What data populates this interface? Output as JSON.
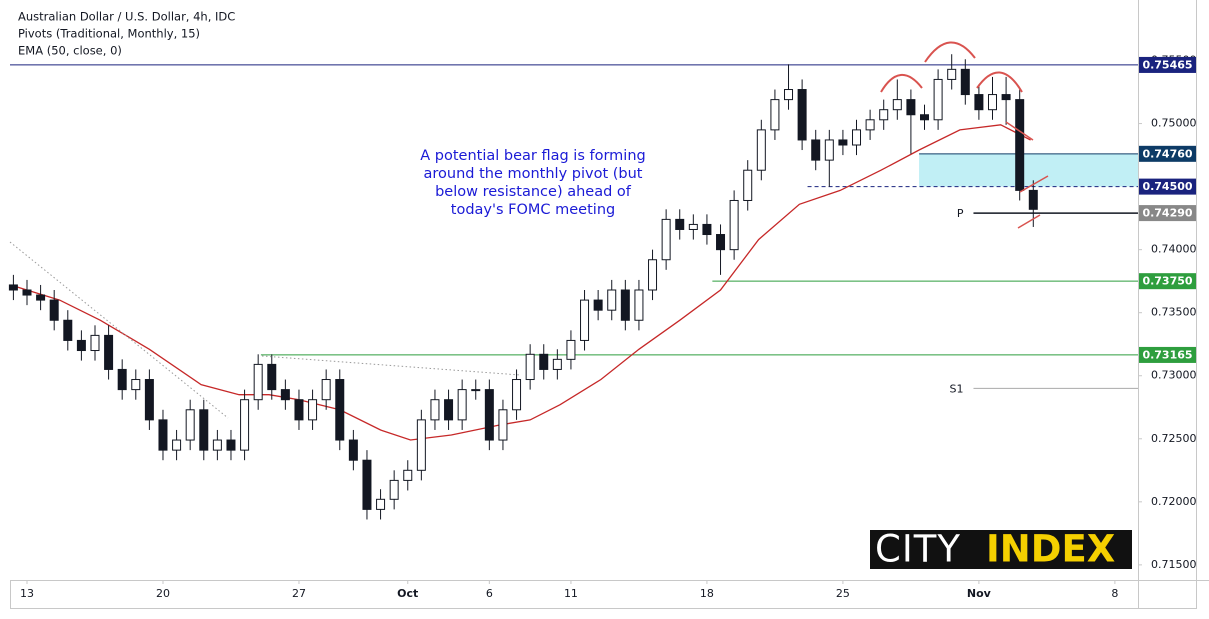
{
  "chart_data": {
    "type": "candlestick",
    "title": "Australian Dollar / U.S. Dollar, 4h, IDC",
    "pivots_name": "Pivots (Traditional, Monthly, 15)",
    "annotation": [
      "A potential bear flag is forming",
      "around the monthly pivot (but",
      "below resistance) ahead of",
      "today's FOMC meeting"
    ],
    "logo": [
      "CITY",
      "INDEX"
    ],
    "xlim": [
      -0.625,
      40.85
    ],
    "ylim": [
      0.7138,
      0.7598
    ],
    "xticks": [
      {
        "value": 0,
        "label": "13"
      },
      {
        "value": 5,
        "label": "20"
      },
      {
        "value": 10,
        "label": "27"
      },
      {
        "value": 14,
        "label": "Oct"
      },
      {
        "value": 17,
        "label": "6"
      },
      {
        "value": 20,
        "label": "11"
      },
      {
        "value": 25,
        "label": "18"
      },
      {
        "value": 30,
        "label": "25"
      },
      {
        "value": 35,
        "label": "Nov"
      },
      {
        "value": 40,
        "label": "8"
      }
    ],
    "yticks": [
      {
        "value": 0.715,
        "label": "0.71500"
      },
      {
        "value": 0.72,
        "label": "0.72000"
      },
      {
        "value": 0.725,
        "label": "0.72500"
      },
      {
        "value": 0.73,
        "label": "0.73000"
      },
      {
        "value": 0.735,
        "label": "0.73500"
      },
      {
        "value": 0.74,
        "label": "0.74000"
      },
      {
        "value": 0.745,
        "label": "0.74500"
      },
      {
        "value": 0.75,
        "label": "0.75000"
      },
      {
        "value": 0.755,
        "label": "0.75500"
      }
    ],
    "x": [
      -0.5,
      0,
      0.5,
      1,
      1.5,
      2,
      2.5,
      3,
      3.5,
      4,
      4.5,
      5,
      5.5,
      6,
      6.5,
      7,
      7.5,
      8,
      8.5,
      9,
      9.5,
      10,
      10.5,
      11,
      11.5,
      12,
      12.5,
      13,
      13.5,
      14,
      14.5,
      15,
      15.5,
      16,
      16.5,
      17,
      17.5,
      18,
      18.5,
      19,
      19.5,
      20,
      20.5,
      21,
      21.5,
      22,
      22.5,
      23,
      23.5,
      24,
      24.5,
      25,
      25.5,
      26,
      26.5,
      27,
      27.5,
      28,
      28.5,
      29,
      29.5,
      30,
      30.5,
      31,
      31.5,
      32,
      32.5,
      33,
      33.5,
      34,
      34.5,
      35,
      35.5,
      36,
      36.5,
      37
    ],
    "open": [
      0.7372,
      0.7368,
      0.7364,
      0.736,
      0.7344,
      0.7328,
      0.732,
      0.7332,
      0.7305,
      0.7289,
      0.7297,
      0.7265,
      0.7241,
      0.7249,
      0.7273,
      0.7241,
      0.7249,
      0.7241,
      0.7281,
      0.7309,
      0.7289,
      0.7281,
      0.7265,
      0.7281,
      0.7297,
      0.7249,
      0.7233,
      0.7194,
      0.7202,
      0.7217,
      0.7225,
      0.7265,
      0.7281,
      0.7265,
      0.7289,
      0.7289,
      0.7249,
      0.7273,
      0.7297,
      0.7317,
      0.7305,
      0.7313,
      0.7328,
      0.736,
      0.7352,
      0.7368,
      0.7344,
      0.7368,
      0.7392,
      0.7424,
      0.7416,
      0.742,
      0.7412,
      0.74,
      0.7439,
      0.7463,
      0.7495,
      0.7519,
      0.7527,
      0.7487,
      0.7471,
      0.7487,
      0.7483,
      0.7495,
      0.7503,
      0.7511,
      0.7519,
      0.7507,
      0.7503,
      0.7535,
      0.7543,
      0.7523,
      0.7511,
      0.7523,
      0.7519,
      0.7447
    ],
    "high": [
      0.738,
      0.7376,
      0.7372,
      0.7368,
      0.7352,
      0.7336,
      0.734,
      0.734,
      0.7313,
      0.7305,
      0.7305,
      0.7273,
      0.7257,
      0.7281,
      0.7281,
      0.7257,
      0.7257,
      0.7289,
      0.7317,
      0.7317,
      0.7297,
      0.7289,
      0.7289,
      0.7305,
      0.7305,
      0.7257,
      0.7241,
      0.721,
      0.7225,
      0.7233,
      0.7273,
      0.7289,
      0.7289,
      0.7297,
      0.7297,
      0.7297,
      0.7281,
      0.7305,
      0.7325,
      0.7325,
      0.7321,
      0.7336,
      0.7368,
      0.7368,
      0.7376,
      0.7376,
      0.7376,
      0.74,
      0.7432,
      0.7432,
      0.7428,
      0.7428,
      0.742,
      0.7447,
      0.7471,
      0.7503,
      0.7527,
      0.7547,
      0.7535,
      0.7495,
      0.7495,
      0.7495,
      0.7503,
      0.7511,
      0.7519,
      0.7535,
      0.7527,
      0.7515,
      0.7543,
      0.7555,
      0.7551,
      0.7531,
      0.7537,
      0.7537,
      0.7527,
      0.7455
    ],
    "low": [
      0.736,
      0.7356,
      0.7352,
      0.7336,
      0.732,
      0.7312,
      0.7312,
      0.7297,
      0.7281,
      0.7281,
      0.7257,
      0.7233,
      0.7233,
      0.7241,
      0.7233,
      0.7233,
      0.7233,
      0.7233,
      0.7273,
      0.7281,
      0.7273,
      0.7257,
      0.7257,
      0.7273,
      0.7241,
      0.7225,
      0.7186,
      0.7186,
      0.7194,
      0.7209,
      0.7217,
      0.7257,
      0.7257,
      0.7257,
      0.7281,
      0.7241,
      0.7241,
      0.7265,
      0.7289,
      0.7297,
      0.7297,
      0.7305,
      0.732,
      0.7344,
      0.7344,
      0.7336,
      0.7336,
      0.736,
      0.7384,
      0.7408,
      0.7408,
      0.7404,
      0.738,
      0.7392,
      0.7431,
      0.7455,
      0.7487,
      0.7511,
      0.7479,
      0.7463,
      0.745,
      0.7475,
      0.7475,
      0.7487,
      0.7495,
      0.7503,
      0.7476,
      0.7495,
      0.7495,
      0.7527,
      0.7515,
      0.7503,
      0.7503,
      0.7499,
      0.7439,
      0.7418
    ],
    "close": [
      0.7368,
      0.7364,
      0.736,
      0.7344,
      0.7328,
      0.732,
      0.7332,
      0.7305,
      0.7289,
      0.7297,
      0.7265,
      0.7241,
      0.7249,
      0.7273,
      0.7241,
      0.7249,
      0.7241,
      0.7281,
      0.7309,
      0.7289,
      0.7281,
      0.7265,
      0.7281,
      0.7297,
      0.7249,
      0.7233,
      0.7194,
      0.7202,
      0.7217,
      0.7225,
      0.7265,
      0.7281,
      0.7265,
      0.7289,
      0.7289,
      0.7249,
      0.7273,
      0.7297,
      0.7317,
      0.7305,
      0.7313,
      0.7328,
      0.736,
      0.7352,
      0.7368,
      0.7344,
      0.7368,
      0.7392,
      0.7424,
      0.7416,
      0.742,
      0.7412,
      0.74,
      0.7439,
      0.7463,
      0.7495,
      0.7519,
      0.7527,
      0.7487,
      0.7471,
      0.7487,
      0.7483,
      0.7495,
      0.7503,
      0.7511,
      0.7519,
      0.7507,
      0.7503,
      0.7535,
      0.7543,
      0.7523,
      0.7511,
      0.7523,
      0.7519,
      0.7447,
      0.7432
    ],
    "up_color": "#ffffff",
    "down_color": "#131722",
    "ema": {
      "name": "EMA (50, close, 0)",
      "color": "#c62828",
      "x": [
        -0.6,
        1.2,
        2.7,
        4.5,
        6.4,
        7.8,
        8.9,
        10.0,
        11.5,
        13.0,
        14.1,
        15.6,
        17.4,
        18.5,
        19.6,
        21.1,
        22.5,
        24.0,
        25.5,
        26.9,
        28.4,
        29.9,
        31.4,
        32.8,
        34.3,
        35.8,
        36.9
      ],
      "values": [
        0.7372,
        0.736,
        0.7344,
        0.7321,
        0.7293,
        0.7285,
        0.7285,
        0.7281,
        0.7273,
        0.7257,
        0.7249,
        0.7253,
        0.7261,
        0.7265,
        0.7277,
        0.7297,
        0.7321,
        0.7344,
        0.7368,
        0.7408,
        0.7436,
        0.7447,
        0.7463,
        0.7479,
        0.7495,
        0.7499,
        0.7487
      ]
    },
    "zone": {
      "from": 0.745,
      "to": 0.7476,
      "start": 32.8,
      "color": "#b2ebf2"
    },
    "levels": [
      {
        "value": 0.75465,
        "label": "0.75465",
        "color": "#1a237e",
        "style": "solid"
      },
      {
        "value": 0.7476,
        "label": "0.74760",
        "color": "#0d3b66",
        "style": "solid",
        "start": 32.8
      },
      {
        "value": 0.745,
        "label": "0.74500",
        "color": "#1a237e",
        "style": "dashed",
        "start": 28.7
      },
      {
        "value": 0.7429,
        "label": "0.74290",
        "color": "#888888",
        "style": "none"
      },
      {
        "value": 0.7375,
        "label": "0.73750",
        "color": "#2e9e3e",
        "style": "solid",
        "start": 25.2
      },
      {
        "value": 0.73165,
        "label": "0.73165",
        "color": "#2e9e3e",
        "style": "solid",
        "start": 8.6
      }
    ],
    "pivots": [
      {
        "label": "P",
        "value": 0.7429,
        "start": 34.8,
        "color": "#131722"
      },
      {
        "label": "S1",
        "value": 0.729,
        "start": 34.8,
        "color": "#aaaaaa"
      }
    ]
  }
}
